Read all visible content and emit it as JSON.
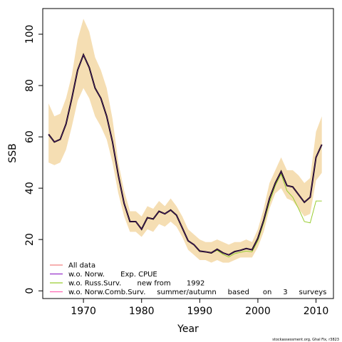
{
  "chart_data": {
    "type": "line",
    "xlabel": "Year",
    "ylabel": "SSB",
    "xlim": [
      1963,
      2013
    ],
    "ylim": [
      -3,
      110
    ],
    "x_ticks": [
      1970,
      1980,
      1990,
      2000,
      2010
    ],
    "y_ticks": [
      0,
      20,
      40,
      60,
      80,
      100
    ],
    "x_tick_labels": [
      "1970",
      "1980",
      "1990",
      "2000",
      "2010"
    ],
    "y_tick_labels": [
      "0",
      "20",
      "40",
      "60",
      "80",
      "100"
    ],
    "grid": false,
    "legend_position": "bottom-left",
    "credit": "stockassessment.org, Ghal Fix, r3823",
    "band": {
      "color": "#F5DEB3",
      "years": [
        1964,
        1965,
        1966,
        1967,
        1968,
        1969,
        1970,
        1971,
        1972,
        1973,
        1974,
        1975,
        1976,
        1977,
        1978,
        1979,
        1980,
        1981,
        1982,
        1983,
        1984,
        1985,
        1986,
        1987,
        1988,
        1989,
        1990,
        1991,
        1992,
        1993,
        1994,
        1995,
        1996,
        1997,
        1998,
        1999,
        2000,
        2001,
        2002,
        2003,
        2004,
        2005,
        2006,
        2007,
        2008,
        2009,
        2010,
        2011
      ],
      "lower": [
        50,
        49,
        50,
        55,
        64,
        74,
        79,
        75,
        68,
        64,
        59,
        50,
        38,
        29,
        23,
        23,
        21,
        24,
        23,
        26,
        25,
        27,
        25,
        21,
        16,
        14,
        12,
        12,
        11,
        12,
        11,
        11,
        12,
        13,
        13,
        13,
        17,
        23,
        32,
        38,
        40,
        36,
        35,
        32,
        29,
        30,
        43,
        46
      ],
      "upper": [
        73,
        68,
        69,
        75,
        84,
        98,
        106,
        101,
        91,
        86,
        79,
        67,
        50,
        39,
        31,
        31,
        29,
        33,
        32,
        35,
        33,
        36,
        33,
        29,
        24,
        22,
        20,
        19,
        19,
        20,
        19,
        18,
        19,
        19,
        20,
        19,
        24,
        32,
        42,
        47,
        52,
        47,
        47,
        45,
        42,
        44,
        62,
        68
      ]
    },
    "series": [
      {
        "name": "All data",
        "color": "#F08080",
        "x": [
          1964,
          1965,
          1966,
          1967,
          1968,
          1969,
          1970,
          1971,
          1972,
          1973,
          1974,
          1975,
          1976,
          1977,
          1978,
          1979,
          1980,
          1981,
          1982,
          1983,
          1984,
          1985,
          1986,
          1987,
          1988,
          1989,
          1990,
          1991,
          1992,
          1993,
          1994,
          1995,
          1996,
          1997,
          1998,
          1999,
          2000,
          2001,
          2002,
          2003,
          2004,
          2005,
          2006,
          2007,
          2008,
          2009,
          2010,
          2011
        ],
        "values": [
          61,
          58,
          59,
          65,
          75,
          86,
          92,
          87,
          79,
          75,
          68,
          58,
          45,
          34,
          27,
          27,
          24,
          28.5,
          28,
          31,
          30,
          31.5,
          29.5,
          24.5,
          19.5,
          18,
          15.5,
          15.2,
          14.8,
          16.2,
          14.8,
          14,
          15.3,
          15.8,
          16.5,
          16,
          20.5,
          27.5,
          36,
          42,
          46.5,
          41,
          40.5,
          37.5,
          34.5,
          36.5,
          52,
          57
        ]
      },
      {
        "name": "w.o. Norw.       Exp. CPUE",
        "color": "#9932CC",
        "x": [
          1964,
          1965,
          1966,
          1967,
          1968,
          1969,
          1970,
          1971,
          1972,
          1973,
          1974,
          1975,
          1976,
          1977,
          1978,
          1979,
          1980,
          1981,
          1982,
          1983,
          1984,
          1985,
          1986,
          1987,
          1988,
          1989,
          1990,
          1991,
          1992,
          1993,
          1994,
          1995,
          1996,
          1997,
          1998,
          1999,
          2000,
          2001,
          2002,
          2003,
          2004,
          2005,
          2006,
          2007,
          2008,
          2009,
          2010,
          2011
        ],
        "values": [
          61,
          58,
          59,
          65,
          75,
          86,
          92,
          87,
          79,
          75,
          68,
          58,
          45,
          34,
          27,
          27,
          24,
          28.5,
          28,
          31,
          30,
          31.5,
          29.5,
          24.5,
          19.5,
          18,
          15.5,
          15.2,
          14.8,
          16.2,
          14.8,
          14,
          15.3,
          15.8,
          16.5,
          16,
          20.5,
          27.5,
          36,
          42,
          46.5,
          41,
          40.5,
          37.5,
          34.5,
          36.5,
          52,
          57
        ]
      },
      {
        "name": "w.o. Russ.Surv.       new from       1992",
        "color": "#9ACD32",
        "x": [
          1964,
          1965,
          1966,
          1967,
          1968,
          1969,
          1970,
          1971,
          1972,
          1973,
          1974,
          1975,
          1976,
          1977,
          1978,
          1979,
          1980,
          1981,
          1982,
          1983,
          1984,
          1985,
          1986,
          1987,
          1988,
          1989,
          1990,
          1991,
          1992,
          1993,
          1994,
          1995,
          1996,
          1997,
          1998,
          1999,
          2000,
          2001,
          2002,
          2003,
          2004,
          2005,
          2006,
          2007,
          2008,
          2009,
          2010,
          2011
        ],
        "values": [
          61,
          58,
          59,
          65,
          75,
          86,
          92,
          87,
          79,
          75,
          68,
          58,
          45,
          34,
          27,
          27,
          24,
          28.5,
          28,
          31,
          30,
          31.5,
          29.5,
          24.5,
          19.5,
          18,
          15.5,
          15.2,
          14.8,
          15.8,
          14.2,
          13.2,
          14.5,
          15,
          15.5,
          15.2,
          19.5,
          26.5,
          34.5,
          41,
          45.5,
          39,
          36.5,
          32,
          27,
          26.5,
          35,
          35
        ]
      },
      {
        "name": "w.o. Norw.Comb.Surv.     summer/autumn     based      on     3     surveys",
        "color": "#FF69B4",
        "x": [
          1964,
          1965,
          1966,
          1967,
          1968,
          1969,
          1970,
          1971,
          1972,
          1973,
          1974,
          1975,
          1976,
          1977,
          1978,
          1979,
          1980,
          1981,
          1982,
          1983,
          1984,
          1985,
          1986,
          1987,
          1988,
          1989,
          1990,
          1991,
          1992,
          1993,
          1994,
          1995,
          1996,
          1997,
          1998,
          1999,
          2000,
          2001,
          2002,
          2003,
          2004,
          2005,
          2006,
          2007,
          2008,
          2009,
          2010,
          2011
        ],
        "values": [
          61,
          58,
          59,
          65,
          75,
          86,
          92,
          87,
          79,
          75,
          68,
          58,
          45,
          34,
          27,
          27,
          24,
          28.5,
          28,
          31,
          30,
          31.5,
          29.5,
          24.5,
          19.5,
          18,
          15.5,
          15.2,
          14.8,
          16.2,
          14.8,
          14,
          15.3,
          15.8,
          16.5,
          16,
          20.5,
          27.5,
          36,
          42,
          46.5,
          41,
          40.5,
          37.5,
          34.5,
          36.5,
          52,
          57
        ]
      }
    ],
    "main_line": {
      "color": "#000000",
      "x": [
        1964,
        1965,
        1966,
        1967,
        1968,
        1969,
        1970,
        1971,
        1972,
        1973,
        1974,
        1975,
        1976,
        1977,
        1978,
        1979,
        1980,
        1981,
        1982,
        1983,
        1984,
        1985,
        1986,
        1987,
        1988,
        1989,
        1990,
        1991,
        1992,
        1993,
        1994,
        1995,
        1996,
        1997,
        1998,
        1999,
        2000,
        2001,
        2002,
        2003,
        2004,
        2005,
        2006,
        2007,
        2008,
        2009,
        2010,
        2011
      ],
      "values": [
        61,
        58,
        59,
        65,
        75,
        86,
        92,
        87,
        79,
        75,
        68,
        58,
        45,
        34,
        27,
        27,
        24,
        28.5,
        28,
        31,
        30,
        31.5,
        29.5,
        24.5,
        19.5,
        18,
        15.5,
        15.2,
        14.8,
        16.2,
        14.8,
        14,
        15.3,
        15.8,
        16.5,
        16,
        20.5,
        27.5,
        36,
        42,
        46.5,
        41,
        40.5,
        37.5,
        34.5,
        36.5,
        52,
        57
      ]
    }
  }
}
